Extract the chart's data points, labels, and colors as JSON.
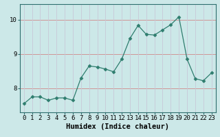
{
  "x": [
    0,
    1,
    2,
    3,
    4,
    5,
    6,
    7,
    8,
    9,
    10,
    11,
    12,
    13,
    14,
    15,
    16,
    17,
    18,
    19,
    20,
    21,
    22,
    23
  ],
  "y": [
    7.55,
    7.75,
    7.75,
    7.65,
    7.72,
    7.72,
    7.65,
    8.3,
    8.65,
    8.62,
    8.56,
    8.48,
    8.85,
    9.45,
    9.83,
    9.57,
    9.55,
    9.7,
    9.85,
    10.08,
    8.85,
    8.28,
    8.22,
    8.45
  ],
  "line_color": "#2e7d6e",
  "marker": "D",
  "marker_size": 2.5,
  "bg_color": "#cce8e8",
  "grid_color_h": "#d08888",
  "grid_color_v": "#c8c8d8",
  "xlabel": "Humidex (Indice chaleur)",
  "ylim": [
    7.3,
    10.45
  ],
  "xlim": [
    -0.5,
    23.5
  ],
  "yticks": [
    8,
    9,
    10
  ],
  "xticks": [
    0,
    1,
    2,
    3,
    4,
    5,
    6,
    7,
    8,
    9,
    10,
    11,
    12,
    13,
    14,
    15,
    16,
    17,
    18,
    19,
    20,
    21,
    22,
    23
  ],
  "tick_fontsize": 6.5,
  "xlabel_fontsize": 7.5,
  "spine_color": "#2e6e6e"
}
